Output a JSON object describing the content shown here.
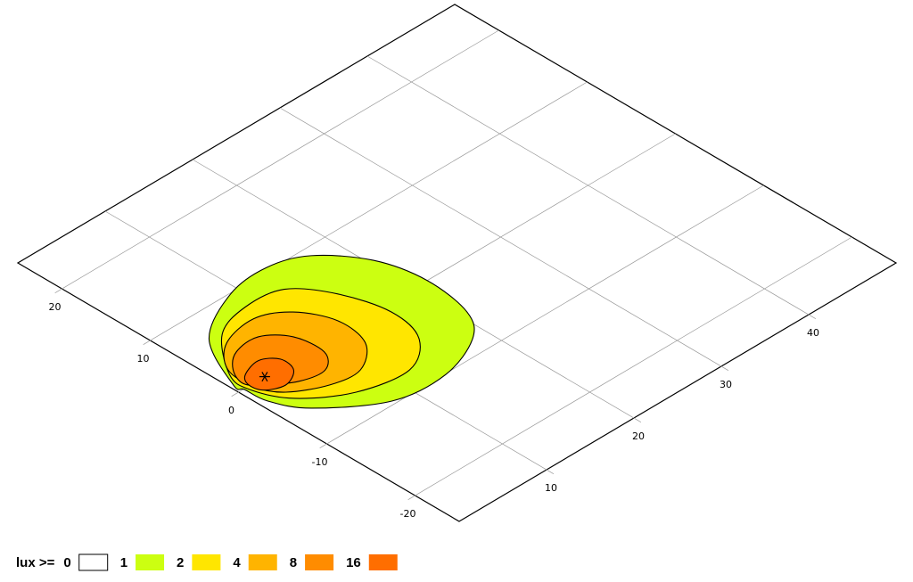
{
  "chart_data": {
    "type": "contour",
    "xlim": [
      0,
      50
    ],
    "xticks": [
      10,
      20,
      30,
      40
    ],
    "ylim": [
      -25,
      25
    ],
    "yticks": [
      -20,
      -10,
      0,
      10,
      20
    ],
    "grid": true,
    "legend_title": "lux >=",
    "levels": [
      {
        "value": 0,
        "color": "#ffffff"
      },
      {
        "value": 1,
        "color": "#ccff11",
        "x": [
          0.4,
          3.5,
          9.1,
          13.7,
          17.4,
          20.5,
          21.6,
          20.8,
          18.5,
          13.5,
          7.9,
          2.6,
          0.8,
          0.6
        ],
        "y": [
          0.97,
          6.8,
          9.9,
          10.4,
          9.0,
          5.0,
          0,
          -5.3,
          -8.2,
          -10.1,
          -9.6,
          -5.7,
          -2.5,
          -0.1
        ]
      },
      {
        "value": 2,
        "color": "#ffe600",
        "x": [
          1.2,
          4.7,
          8.6,
          12.6,
          15.2,
          16.5,
          15.5,
          11.9,
          6.7,
          2.6,
          0.9
        ],
        "y": [
          2.2,
          6.5,
          7.8,
          7.3,
          3.8,
          -1,
          -5.1,
          -7.6,
          -6.7,
          -3.8,
          -0.4
        ]
      },
      {
        "value": 4,
        "color": "#ffb400",
        "x": [
          1.6,
          4.1,
          8,
          10.9,
          12.6,
          12,
          9.1,
          5.9,
          2.7,
          1.4
        ],
        "y": [
          2.8,
          5.4,
          6.2,
          4.6,
          1.2,
          -2.5,
          -4.8,
          -4.5,
          -2.7,
          -0.4
        ]
      },
      {
        "value": 8,
        "color": "#ff8c00",
        "x": [
          1.9,
          3.8,
          6.5,
          8.5,
          8.8,
          7.1,
          4.5,
          2.1,
          1.1
        ],
        "y": [
          2.5,
          4,
          4.2,
          2.2,
          -1,
          -2.8,
          -2.4,
          -0.7,
          0.6
        ]
      },
      {
        "value": 16,
        "color": "#ff6e00",
        "x": [
          2.1,
          4.2,
          5.6,
          5.3,
          3.4,
          1.6,
          1.3
        ],
        "y": [
          1.3,
          1.9,
          0.8,
          -1,
          -2,
          -1.2,
          0.2
        ]
      }
    ],
    "source": {
      "x": 3,
      "y": 0
    }
  }
}
